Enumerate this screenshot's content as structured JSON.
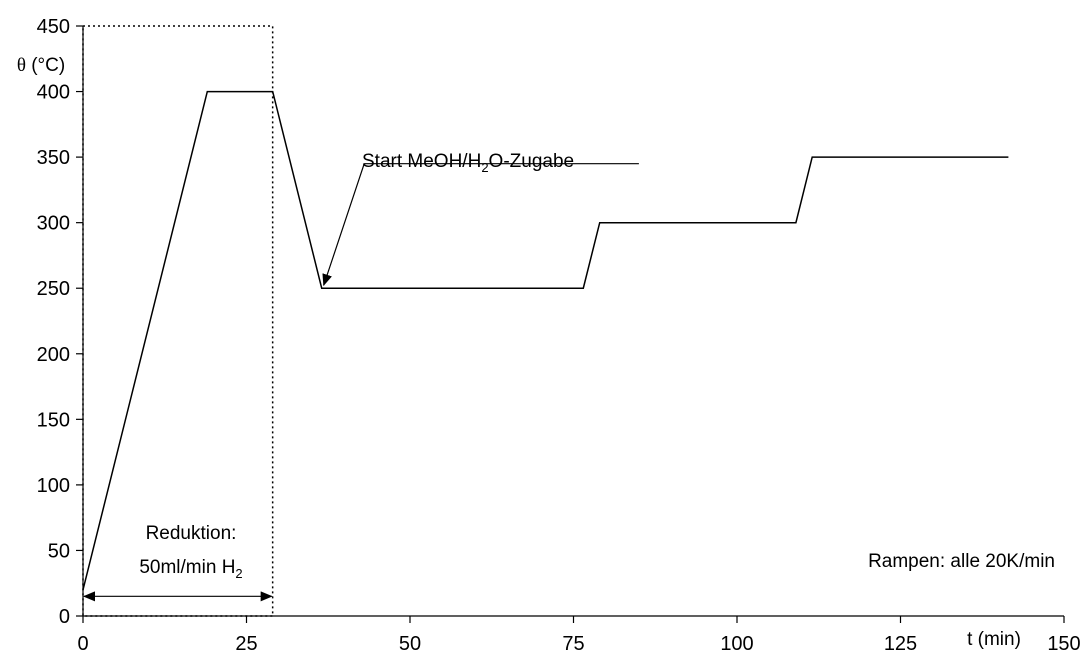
{
  "chart_data": {
    "type": "line",
    "title": "",
    "xlabel": "t (min)",
    "ylabel_symbol": "θ",
    "ylabel_unit": " (°C)",
    "xlim": [
      0,
      150
    ],
    "ylim": [
      0,
      450
    ],
    "x_ticks": [
      0,
      25,
      50,
      75,
      100,
      125,
      150
    ],
    "y_ticks": [
      0,
      50,
      100,
      150,
      200,
      250,
      300,
      350,
      400,
      450
    ],
    "grid": false,
    "series": [
      {
        "color": "#000000",
        "x": [
          0,
          19,
          29,
          36.5,
          76.5,
          79,
          109,
          111.5,
          141.5
        ],
        "y": [
          20,
          400,
          400,
          250,
          250,
          300,
          300,
          350,
          350
        ]
      }
    ],
    "annotations": {
      "start_label_main": "Start MeOH/H",
      "start_label_sub": "2",
      "start_label_rest": "O-Zugabe",
      "reduction_line1": "Reduktion:",
      "reduction_line2_main": "50ml/min H",
      "reduction_line2_sub": "2",
      "ramps_note": "Rampen: alle 20K/min"
    },
    "reduction_box": {
      "x_range": [
        0,
        29
      ],
      "y_range": [
        0,
        450
      ]
    },
    "reduction_arrow": {
      "x_range": [
        0,
        29
      ],
      "y": 15
    },
    "start_arrow": {
      "tip": [
        36.5,
        250
      ],
      "tail": [
        43,
        345
      ],
      "underline_x_end": 85
    }
  }
}
